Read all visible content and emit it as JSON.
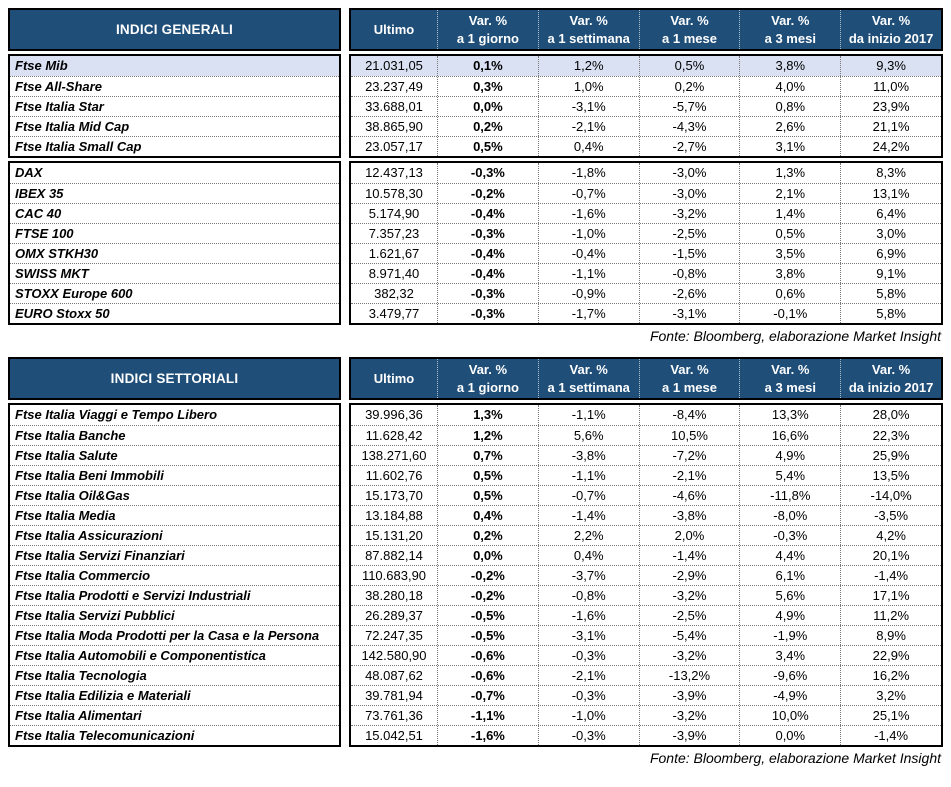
{
  "colors": {
    "header_bg": "#1F4E79",
    "header_text": "#FFFFFF",
    "highlight_row_bg": "#D9E1F2",
    "border": "#000000"
  },
  "source_note": "Fonte: Bloomberg, elaborazione Market Insight",
  "columns": [
    {
      "line1": "Ultimo",
      "line2": ""
    },
    {
      "line1": "Var. %",
      "line2": "a 1 giorno"
    },
    {
      "line1": "Var. %",
      "line2": "a 1 settimana"
    },
    {
      "line1": "Var. %",
      "line2": "a 1 mese"
    },
    {
      "line1": "Var. %",
      "line2": "a 3 mesi"
    },
    {
      "line1": "Var. %",
      "line2": "da inizio 2017"
    }
  ],
  "tables": [
    {
      "id": "indici-generali",
      "title": "INDICI GENERALI",
      "groups": [
        {
          "rows": [
            {
              "label": "Ftse Mib",
              "highlight": true,
              "values": [
                "21.031,05",
                "0,1%",
                "1,2%",
                "0,5%",
                "3,8%",
                "9,3%"
              ]
            },
            {
              "label": "Ftse All-Share",
              "highlight": false,
              "values": [
                "23.237,49",
                "0,3%",
                "1,0%",
                "0,2%",
                "4,0%",
                "11,0%"
              ]
            },
            {
              "label": "Ftse Italia Star",
              "highlight": false,
              "values": [
                "33.688,01",
                "0,0%",
                "-3,1%",
                "-5,7%",
                "0,8%",
                "23,9%"
              ]
            },
            {
              "label": "Ftse Italia Mid Cap",
              "highlight": false,
              "values": [
                "38.865,90",
                "0,2%",
                "-2,1%",
                "-4,3%",
                "2,6%",
                "21,1%"
              ]
            },
            {
              "label": "Ftse Italia Small Cap",
              "highlight": false,
              "values": [
                "23.057,17",
                "0,5%",
                "0,4%",
                "-2,7%",
                "3,1%",
                "24,2%"
              ]
            }
          ]
        },
        {
          "rows": [
            {
              "label": "DAX",
              "highlight": false,
              "values": [
                "12.437,13",
                "-0,3%",
                "-1,8%",
                "-3,0%",
                "1,3%",
                "8,3%"
              ]
            },
            {
              "label": "IBEX 35",
              "highlight": false,
              "values": [
                "10.578,30",
                "-0,2%",
                "-0,7%",
                "-3,0%",
                "2,1%",
                "13,1%"
              ]
            },
            {
              "label": "CAC 40",
              "highlight": false,
              "values": [
                "5.174,90",
                "-0,4%",
                "-1,6%",
                "-3,2%",
                "1,4%",
                "6,4%"
              ]
            },
            {
              "label": "FTSE 100",
              "highlight": false,
              "values": [
                "7.357,23",
                "-0,3%",
                "-1,0%",
                "-2,5%",
                "0,5%",
                "3,0%"
              ]
            },
            {
              "label": "OMX STKH30",
              "highlight": false,
              "values": [
                "1.621,67",
                "-0,4%",
                "-0,4%",
                "-1,5%",
                "3,5%",
                "6,9%"
              ]
            },
            {
              "label": "SWISS MKT",
              "highlight": false,
              "values": [
                "8.971,40",
                "-0,4%",
                "-1,1%",
                "-0,8%",
                "3,8%",
                "9,1%"
              ]
            },
            {
              "label": "STOXX Europe 600",
              "highlight": false,
              "values": [
                "382,32",
                "-0,3%",
                "-0,9%",
                "-2,6%",
                "0,6%",
                "5,8%"
              ]
            },
            {
              "label": "EURO Stoxx 50",
              "highlight": false,
              "values": [
                "3.479,77",
                "-0,3%",
                "-1,7%",
                "-3,1%",
                "-0,1%",
                "5,8%"
              ]
            }
          ]
        }
      ]
    },
    {
      "id": "indici-settoriali",
      "title": "INDICI SETTORIALI",
      "groups": [
        {
          "rows": [
            {
              "label": "Ftse Italia Viaggi e Tempo Libero",
              "highlight": false,
              "values": [
                "39.996,36",
                "1,3%",
                "-1,1%",
                "-8,4%",
                "13,3%",
                "28,0%"
              ]
            },
            {
              "label": "Ftse Italia Banche",
              "highlight": false,
              "values": [
                "11.628,42",
                "1,2%",
                "5,6%",
                "10,5%",
                "16,6%",
                "22,3%"
              ]
            },
            {
              "label": "Ftse Italia Salute",
              "highlight": false,
              "values": [
                "138.271,60",
                "0,7%",
                "-3,8%",
                "-7,2%",
                "4,9%",
                "25,9%"
              ]
            },
            {
              "label": "Ftse Italia Beni Immobili",
              "highlight": false,
              "values": [
                "11.602,76",
                "0,5%",
                "-1,1%",
                "-2,1%",
                "5,4%",
                "13,5%"
              ]
            },
            {
              "label": "Ftse Italia Oil&Gas",
              "highlight": false,
              "values": [
                "15.173,70",
                "0,5%",
                "-0,7%",
                "-4,6%",
                "-11,8%",
                "-14,0%"
              ]
            },
            {
              "label": "Ftse Italia Media",
              "highlight": false,
              "values": [
                "13.184,88",
                "0,4%",
                "-1,4%",
                "-3,8%",
                "-8,0%",
                "-3,5%"
              ]
            },
            {
              "label": "Ftse Italia Assicurazioni",
              "highlight": false,
              "values": [
                "15.131,20",
                "0,2%",
                "2,2%",
                "2,0%",
                "-0,3%",
                "4,2%"
              ]
            },
            {
              "label": "Ftse Italia Servizi Finanziari",
              "highlight": false,
              "values": [
                "87.882,14",
                "0,0%",
                "0,4%",
                "-1,4%",
                "4,4%",
                "20,1%"
              ]
            },
            {
              "label": "Ftse Italia Commercio",
              "highlight": false,
              "values": [
                "110.683,90",
                "-0,2%",
                "-3,7%",
                "-2,9%",
                "6,1%",
                "-1,4%"
              ]
            },
            {
              "label": "Ftse Italia Prodotti e Servizi Industriali",
              "highlight": false,
              "values": [
                "38.280,18",
                "-0,2%",
                "-0,8%",
                "-3,2%",
                "5,6%",
                "17,1%"
              ]
            },
            {
              "label": "Ftse Italia Servizi Pubblici",
              "highlight": false,
              "values": [
                "26.289,37",
                "-0,5%",
                "-1,6%",
                "-2,5%",
                "4,9%",
                "11,2%"
              ]
            },
            {
              "label": "Ftse Italia Moda Prodotti per la Casa e la Persona",
              "highlight": false,
              "values": [
                "72.247,35",
                "-0,5%",
                "-3,1%",
                "-5,4%",
                "-1,9%",
                "8,9%"
              ]
            },
            {
              "label": "Ftse Italia Automobili e Componentistica",
              "highlight": false,
              "values": [
                "142.580,90",
                "-0,6%",
                "-0,3%",
                "-3,2%",
                "3,4%",
                "22,9%"
              ]
            },
            {
              "label": "Ftse Italia Tecnologia",
              "highlight": false,
              "values": [
                "48.087,62",
                "-0,6%",
                "-2,1%",
                "-13,2%",
                "-9,6%",
                "16,2%"
              ]
            },
            {
              "label": "Ftse Italia Edilizia e Materiali",
              "highlight": false,
              "values": [
                "39.781,94",
                "-0,7%",
                "-0,3%",
                "-3,9%",
                "-4,9%",
                "3,2%"
              ]
            },
            {
              "label": "Ftse Italia Alimentari",
              "highlight": false,
              "values": [
                "73.761,36",
                "-1,1%",
                "-1,0%",
                "-3,2%",
                "10,0%",
                "25,1%"
              ]
            },
            {
              "label": "Ftse Italia Telecomunicazioni",
              "highlight": false,
              "values": [
                "15.042,51",
                "-1,6%",
                "-0,3%",
                "-3,9%",
                "0,0%",
                "-1,4%"
              ]
            }
          ]
        }
      ]
    }
  ]
}
